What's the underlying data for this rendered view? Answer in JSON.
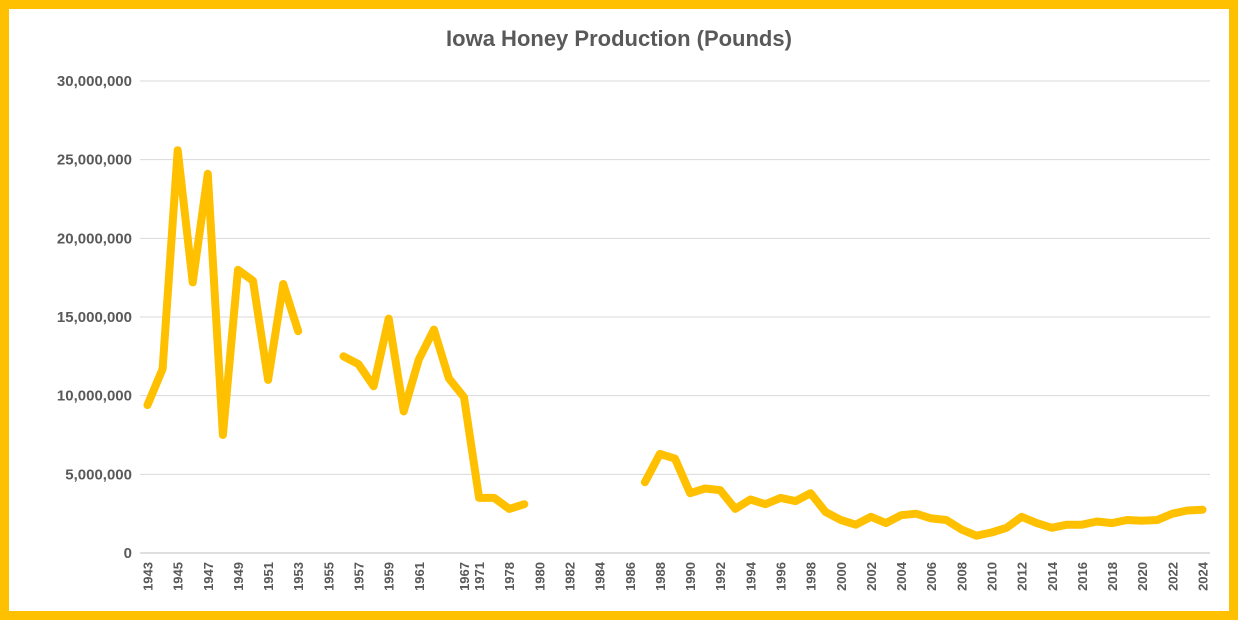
{
  "colors": {
    "accent": "#FFC000",
    "text": "#595959",
    "grid": "#d9d9d9"
  },
  "chart_data": {
    "type": "line",
    "title": "Iowa Honey Production (Pounds)",
    "xlabel": "",
    "ylabel": "",
    "ylim": [
      0,
      30000000
    ],
    "yticks": [
      0,
      5000000,
      10000000,
      15000000,
      20000000,
      25000000,
      30000000
    ],
    "ytick_labels": [
      "0",
      "5,000,000",
      "10,000,000",
      "15,000,000",
      "20,000,000",
      "25,000,000",
      "30,000,000"
    ],
    "grid": true,
    "legend": "none",
    "x": [
      "1943",
      "1944",
      "1945",
      "1946",
      "1947",
      "1948",
      "1949",
      "1950",
      "1951",
      "1952",
      "1953",
      "1954",
      "1955",
      "1956",
      "1957",
      "1958",
      "1959",
      "1960",
      "1961",
      "1962",
      "1963",
      "1967",
      "1971",
      "1977",
      "1978",
      "1979",
      "1980",
      "1981",
      "1982",
      "1983",
      "1984",
      "1985",
      "1986",
      "1987",
      "1988",
      "1989",
      "1990",
      "1991",
      "1992",
      "1993",
      "1994",
      "1995",
      "1996",
      "1997",
      "1998",
      "1999",
      "2000",
      "2001",
      "2002",
      "2003",
      "2004",
      "2005",
      "2006",
      "2007",
      "2008",
      "2009",
      "2010",
      "2011",
      "2012",
      "2013",
      "2014",
      "2015",
      "2016",
      "2017",
      "2018",
      "2019",
      "2020",
      "2021",
      "2022",
      "2023",
      "2024"
    ],
    "x_tick_labels": [
      "1943",
      "1945",
      "1947",
      "1949",
      "1951",
      "1953",
      "1955",
      "1957",
      "1959",
      "1961",
      "1967",
      "1971",
      "1978",
      "1980",
      "1982",
      "1984",
      "1986",
      "1988",
      "1990",
      "1992",
      "1994",
      "1996",
      "1998",
      "2000",
      "2002",
      "2004",
      "2006",
      "2008",
      "2010",
      "2012",
      "2014",
      "2016",
      "2018",
      "2020",
      "2022",
      "2024"
    ],
    "series": [
      {
        "values": [
          9400000,
          11700000,
          25600000,
          17200000,
          24100000,
          7500000,
          18000000,
          17300000,
          11000000,
          17100000,
          14100000,
          null,
          null,
          12500000,
          12000000,
          10600000,
          14900000,
          9000000,
          12300000,
          14200000,
          11100000,
          9900000,
          3500000,
          3500000,
          2800000,
          3100000,
          null,
          null,
          null,
          null,
          null,
          null,
          null,
          4500000,
          6300000,
          6000000,
          3800000,
          4100000,
          4000000,
          2800000,
          3400000,
          3100000,
          3500000,
          3300000,
          3800000,
          2600000,
          2100000,
          1800000,
          2300000,
          1900000,
          2400000,
          2500000,
          2200000,
          2100000,
          1500000,
          1100000,
          1300000,
          1600000,
          2300000,
          1900000,
          1600000,
          1800000,
          1800000,
          2000000,
          1900000,
          2100000,
          2050000,
          2100000,
          2500000,
          2700000,
          2750000
        ]
      }
    ]
  }
}
